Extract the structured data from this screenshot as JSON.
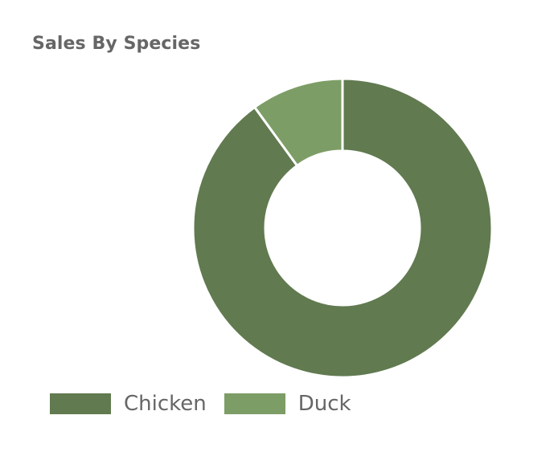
{
  "chart_data": {
    "type": "pie",
    "title": "Sales By Species",
    "categories": [
      "Chicken",
      "Duck"
    ],
    "values": [
      90,
      10
    ],
    "colors": [
      "#617a50",
      "#7d9d66"
    ],
    "donut": true,
    "legend_position": "bottom-left"
  }
}
